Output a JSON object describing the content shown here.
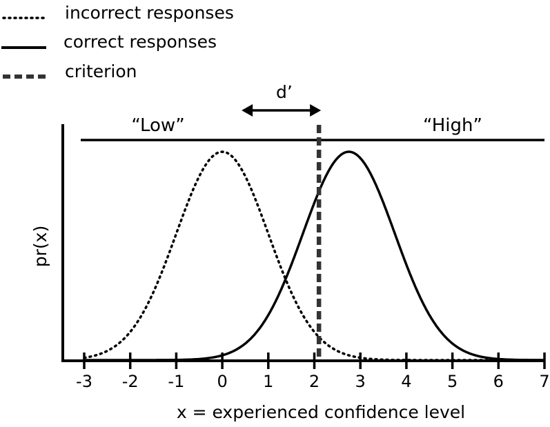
{
  "legend": [
    {
      "label": "incorrect responses",
      "style": "dotted"
    },
    {
      "label": "correct responses",
      "style": "solid"
    },
    {
      "label": "criterion",
      "style": "dashed"
    }
  ],
  "dprime_label": "d’",
  "region_low_label": "“Low”",
  "region_high_label": "“High”",
  "ylabel": "pr(x)",
  "xlabel": "x =  experienced confidence level",
  "chart_data": {
    "type": "line",
    "x_ticks": [
      -3,
      -2,
      -1,
      0,
      1,
      2,
      3,
      4,
      5,
      6,
      7
    ],
    "xlim": [
      -3,
      7
    ],
    "series": [
      {
        "name": "incorrect responses",
        "mean": 0,
        "sd": 1,
        "style": "dotted"
      },
      {
        "name": "correct responses",
        "mean": 2.75,
        "sd": 1,
        "style": "solid"
      }
    ],
    "criterion": 2.1,
    "dprime_span": [
      0.45,
      2.1
    ]
  },
  "colors": {
    "ink": "#000000",
    "criterion": "#333333"
  }
}
